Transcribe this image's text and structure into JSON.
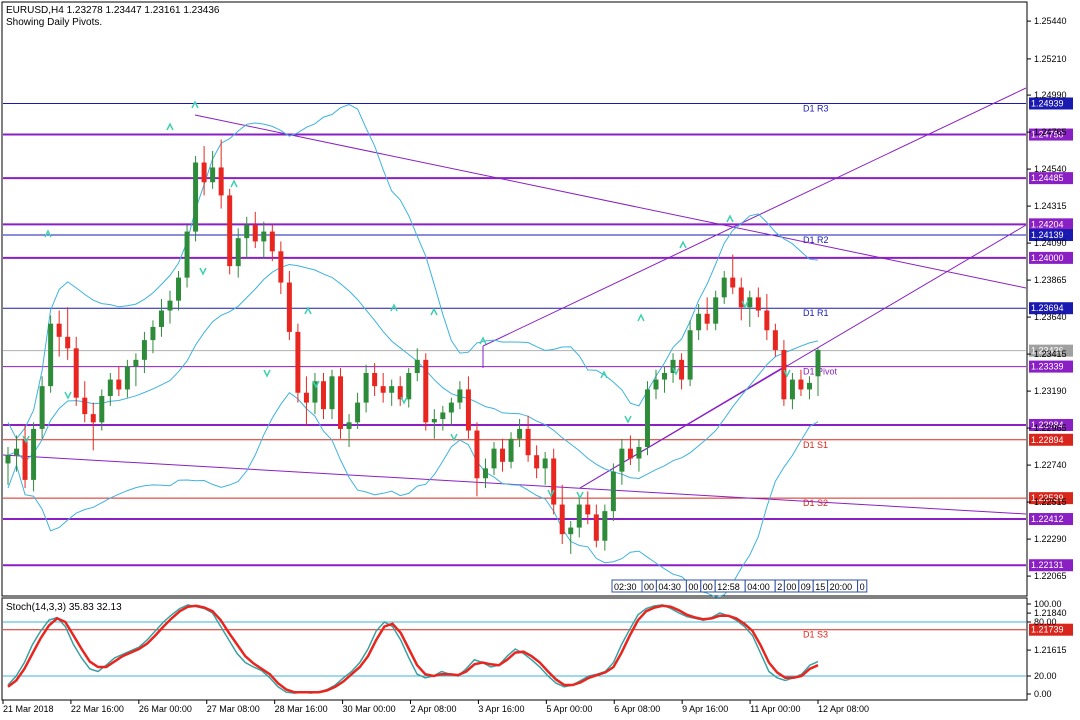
{
  "header": {
    "symbol_line": "EURUSD,H4  1.23278 1.23447 1.23161 1.23436",
    "subtitle": "Showing Daily Pivots."
  },
  "stoch_label": "Stoch(14,3,3) 35.83 32.13",
  "colors": {
    "bull": "#2e8b3a",
    "bear": "#e8261f",
    "purple": "#8a1fc4",
    "red_line": "#d9261c",
    "blue_line": "#1a1ab0",
    "bb": "#3fb3dd",
    "stoch_main": "#3aa0a0",
    "stoch_signal": "#e8261f",
    "arrow": "#40d0b0"
  },
  "chart_data": [
    {
      "type": "candlestick",
      "ylim": [
        1.2195,
        1.2555
      ],
      "price_ticks": [
        "1.25440",
        "1.25210",
        "1.24990",
        "1.24765",
        "1.24540",
        "1.24315",
        "1.24090",
        "1.23865",
        "1.23640",
        "1.23415",
        "1.23190",
        "1.22965",
        "1.22740",
        "1.22515",
        "1.22290",
        "1.22065",
        "1.21840",
        "1.21615"
      ],
      "x_ticks": [
        "21 Mar 2018",
        "22 Mar 16:00",
        "26 Mar 00:00",
        "27 Mar 08:00",
        "28 Mar 16:00",
        "30 Mar 00:00",
        "2 Apr 08:00",
        "3 Apr 16:00",
        "5 Apr 00:00",
        "6 Apr 08:00",
        "9 Apr 16:00",
        "11 Apr 00:00",
        "12 Apr 08:00"
      ],
      "horizontal_levels": [
        {
          "price": 1.24939,
          "box": "1.24939",
          "label": "D1 R3",
          "kind": "blue"
        },
        {
          "price": 1.2475,
          "box": "1.24750",
          "label": "",
          "kind": "purple"
        },
        {
          "price": 1.24485,
          "box": "1.24485",
          "label": "",
          "kind": "purple"
        },
        {
          "price": 1.24204,
          "box": "1.24204",
          "label": "",
          "kind": "purple"
        },
        {
          "price": 1.24139,
          "box": "1.24139",
          "label": "D1 R2",
          "kind": "blue"
        },
        {
          "price": 1.24,
          "box": "1.24000",
          "label": "",
          "kind": "purple"
        },
        {
          "price": 1.23694,
          "box": "1.23694",
          "label": "D1 R1",
          "kind": "blue"
        },
        {
          "price": 1.23436,
          "box": "1.23436",
          "label": "",
          "kind": "gray"
        },
        {
          "price": 1.23339,
          "box": "1.23339",
          "label": "D1 Pivot",
          "kind": "purple_thin"
        },
        {
          "price": 1.22984,
          "box": "1.22984",
          "label": "",
          "kind": "purple"
        },
        {
          "price": 1.22894,
          "box": "1.22894",
          "label": "D1 S1",
          "kind": "red"
        },
        {
          "price": 1.22539,
          "box": "1.22539",
          "label": "D1 S2",
          "kind": "red"
        },
        {
          "price": 1.22412,
          "box": "1.22412",
          "label": "",
          "kind": "purple"
        },
        {
          "price": 1.22131,
          "box": "1.22131",
          "label": "",
          "kind": "purple"
        },
        {
          "price": 1.21739,
          "box": "1.21739",
          "label": "D1 S3",
          "kind": "red"
        }
      ],
      "candles": [
        [
          1.2275,
          1.2285,
          1.2262,
          1.228
        ],
        [
          1.228,
          1.2292,
          1.227,
          1.2284
        ],
        [
          1.229,
          1.2298,
          1.226,
          1.2265
        ],
        [
          1.2265,
          1.23,
          1.2258,
          1.2296
        ],
        [
          1.2296,
          1.2328,
          1.229,
          1.2322
        ],
        [
          1.2322,
          1.2365,
          1.2318,
          1.236
        ],
        [
          1.236,
          1.2368,
          1.234,
          1.2352
        ],
        [
          1.2352,
          1.237,
          1.2338,
          1.2345
        ],
        [
          1.2345,
          1.2352,
          1.231,
          1.2315
        ],
        [
          1.2315,
          1.2325,
          1.23,
          1.2305
        ],
        [
          1.2305,
          1.2312,
          1.2283,
          1.23
        ],
        [
          1.23,
          1.232,
          1.2295,
          1.2316
        ],
        [
          1.2316,
          1.233,
          1.231,
          1.2326
        ],
        [
          1.2326,
          1.2334,
          1.2316,
          1.232
        ],
        [
          1.232,
          1.2338,
          1.2315,
          1.2334
        ],
        [
          1.2334,
          1.2342,
          1.2322,
          1.2338
        ],
        [
          1.2338,
          1.2355,
          1.233,
          1.235
        ],
        [
          1.235,
          1.2362,
          1.2342,
          1.2358
        ],
        [
          1.2358,
          1.2375,
          1.2352,
          1.2368
        ],
        [
          1.2368,
          1.238,
          1.236,
          1.2374
        ],
        [
          1.2374,
          1.2392,
          1.2368,
          1.2388
        ],
        [
          1.2388,
          1.242,
          1.2382,
          1.2416
        ],
        [
          1.2416,
          1.2462,
          1.241,
          1.2458
        ],
        [
          1.2458,
          1.2468,
          1.2438,
          1.2446
        ],
        [
          1.2446,
          1.2465,
          1.2442,
          1.2455
        ],
        [
          1.2455,
          1.2472,
          1.243,
          1.2438
        ],
        [
          1.2438,
          1.2442,
          1.239,
          1.2395
        ],
        [
          1.2395,
          1.2418,
          1.2388,
          1.2412
        ],
        [
          1.2412,
          1.2425,
          1.24,
          1.242
        ],
        [
          1.242,
          1.2428,
          1.2406,
          1.241
        ],
        [
          1.241,
          1.2422,
          1.24,
          1.2416
        ],
        [
          1.2416,
          1.242,
          1.2398,
          1.2404
        ],
        [
          1.2404,
          1.241,
          1.2378,
          1.2385
        ],
        [
          1.2385,
          1.2392,
          1.235,
          1.2355
        ],
        [
          1.2355,
          1.236,
          1.2312,
          1.2318
        ],
        [
          1.2318,
          1.2328,
          1.2298,
          1.2312
        ],
        [
          1.2312,
          1.233,
          1.2305,
          1.2325
        ],
        [
          1.2325,
          1.233,
          1.2302,
          1.2308
        ],
        [
          1.2308,
          1.2332,
          1.2302,
          1.2328
        ],
        [
          1.2328,
          1.2333,
          1.229,
          1.2296
        ],
        [
          1.2296,
          1.2305,
          1.2285,
          1.23
        ],
        [
          1.23,
          1.2318,
          1.2296,
          1.2312
        ],
        [
          1.2312,
          1.2335,
          1.2306,
          1.233
        ],
        [
          1.233,
          1.2336,
          1.2316,
          1.2322
        ],
        [
          1.2322,
          1.233,
          1.2312,
          1.2318
        ],
        [
          1.2318,
          1.2326,
          1.231,
          1.2322
        ],
        [
          1.2322,
          1.2328,
          1.231,
          1.2314
        ],
        [
          1.2314,
          1.2333,
          1.2309,
          1.233
        ],
        [
          1.233,
          1.2345,
          1.2325,
          1.2338
        ],
        [
          1.2338,
          1.2342,
          1.2295,
          1.23
        ],
        [
          1.23,
          1.2308,
          1.229,
          1.2302
        ],
        [
          1.2302,
          1.231,
          1.2295,
          1.2306
        ],
        [
          1.2306,
          1.2315,
          1.2298,
          1.2312
        ],
        [
          1.2312,
          1.2325,
          1.2308,
          1.232
        ],
        [
          1.232,
          1.2328,
          1.229,
          1.2295
        ],
        [
          1.2295,
          1.23,
          1.2255,
          1.2266
        ],
        [
          1.2266,
          1.2278,
          1.226,
          1.2272
        ],
        [
          1.2272,
          1.2288,
          1.2268,
          1.2284
        ],
        [
          1.2284,
          1.229,
          1.227,
          1.2276
        ],
        [
          1.2276,
          1.2294,
          1.2272,
          1.229
        ],
        [
          1.229,
          1.2302,
          1.2285,
          1.2296
        ],
        [
          1.2296,
          1.2304,
          1.2276,
          1.228
        ],
        [
          1.228,
          1.2286,
          1.2266,
          1.2272
        ],
        [
          1.2272,
          1.2282,
          1.2262,
          1.2278
        ],
        [
          1.2278,
          1.2284,
          1.2244,
          1.225
        ],
        [
          1.225,
          1.2262,
          1.2226,
          1.2232
        ],
        [
          1.2232,
          1.224,
          1.222,
          1.2236
        ],
        [
          1.2236,
          1.2255,
          1.223,
          1.225
        ],
        [
          1.225,
          1.2258,
          1.2238,
          1.2244
        ],
        [
          1.2244,
          1.225,
          1.2224,
          1.2228
        ],
        [
          1.2228,
          1.225,
          1.2222,
          1.2246
        ],
        [
          1.2246,
          1.2275,
          1.224,
          1.227
        ],
        [
          1.227,
          1.229,
          1.2262,
          1.2284
        ],
        [
          1.2284,
          1.2292,
          1.2274,
          1.2278
        ],
        [
          1.2278,
          1.229,
          1.227,
          1.2285
        ],
        [
          1.2285,
          1.2325,
          1.228,
          1.232
        ],
        [
          1.232,
          1.2332,
          1.2314,
          1.2326
        ],
        [
          1.2326,
          1.2334,
          1.2318,
          1.233
        ],
        [
          1.233,
          1.2342,
          1.2324,
          1.2338
        ],
        [
          1.2338,
          1.2342,
          1.232,
          1.2326
        ],
        [
          1.2326,
          1.2362,
          1.2322,
          1.2356
        ],
        [
          1.2356,
          1.2372,
          1.235,
          1.2366
        ],
        [
          1.2366,
          1.2376,
          1.2356,
          1.236
        ],
        [
          1.236,
          1.238,
          1.2356,
          1.2376
        ],
        [
          1.2376,
          1.2392,
          1.2372,
          1.2388
        ],
        [
          1.2388,
          1.2402,
          1.2378,
          1.2382
        ],
        [
          1.2382,
          1.2388,
          1.2362,
          1.237
        ],
        [
          1.237,
          1.238,
          1.2358,
          1.2376
        ],
        [
          1.2376,
          1.2382,
          1.2364,
          1.2368
        ],
        [
          1.2368,
          1.2378,
          1.235,
          1.2356
        ],
        [
          1.2356,
          1.236,
          1.234,
          1.2344
        ],
        [
          1.2344,
          1.235,
          1.231,
          1.2314
        ],
        [
          1.2314,
          1.233,
          1.2308,
          1.2326
        ],
        [
          1.2326,
          1.2332,
          1.2316,
          1.232
        ],
        [
          1.232,
          1.2328,
          1.2314,
          1.2324
        ],
        [
          1.2328,
          1.2345,
          1.2316,
          1.2344
        ]
      ],
      "bollinger_note": "Bollinger Bands"
    },
    {
      "type": "line",
      "title": "Stoch(14,3,3) 35.83 32.13",
      "ylim": [
        0,
        100
      ],
      "y_ticks": [
        "100.00",
        "80.00",
        "20.00",
        "0.00"
      ],
      "levels": [
        80,
        20
      ],
      "series": [
        {
          "name": "main",
          "values": [
            10,
            20,
            35,
            55,
            70,
            82,
            85,
            75,
            55,
            40,
            28,
            25,
            32,
            40,
            44,
            48,
            52,
            60,
            70,
            80,
            88,
            95,
            99,
            97,
            95,
            90,
            75,
            60,
            45,
            35,
            30,
            26,
            18,
            8,
            2,
            1,
            2,
            1,
            2,
            5,
            10,
            18,
            25,
            35,
            50,
            70,
            80,
            75,
            60,
            40,
            22,
            18,
            20,
            25,
            22,
            20,
            28,
            38,
            35,
            30,
            32,
            42,
            50,
            45,
            38,
            30,
            20,
            12,
            8,
            10,
            15,
            20,
            22,
            25,
            35,
            55,
            72,
            88,
            95,
            98,
            99,
            95,
            90,
            86,
            84,
            82,
            85,
            90,
            87,
            82,
            75,
            65,
            45,
            25,
            18,
            15,
            18,
            22,
            32,
            36
          ]
        },
        {
          "name": "signal",
          "values": [
            8,
            15,
            28,
            45,
            62,
            76,
            84,
            80,
            65,
            50,
            36,
            30,
            30,
            36,
            42,
            46,
            50,
            56,
            65,
            75,
            84,
            92,
            97,
            98,
            96,
            92,
            82,
            68,
            55,
            42,
            34,
            28,
            22,
            12,
            5,
            2,
            2,
            2,
            2,
            4,
            8,
            14,
            22,
            30,
            42,
            60,
            75,
            78,
            68,
            50,
            32,
            22,
            20,
            22,
            22,
            21,
            25,
            33,
            35,
            33,
            32,
            38,
            46,
            47,
            42,
            35,
            25,
            16,
            10,
            10,
            13,
            18,
            21,
            24,
            30,
            46,
            65,
            82,
            92,
            96,
            98,
            97,
            93,
            88,
            85,
            83,
            84,
            87,
            87,
            84,
            78,
            70,
            54,
            35,
            24,
            18,
            18,
            20,
            28,
            32
          ]
        }
      ]
    }
  ],
  "time_toolbar": [
    "02:30",
    "00",
    "04:30",
    "00",
    "00",
    "12:58",
    "04:00",
    "2",
    "00",
    "09",
    "15",
    "20:00",
    "0"
  ]
}
